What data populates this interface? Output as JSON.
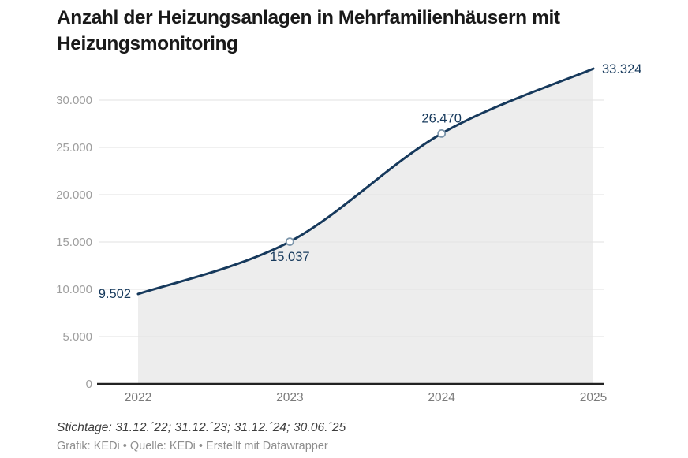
{
  "header": {
    "title_line1": "Anzahl der Heizungsanlagen in Mehrfamilienhäusern mit",
    "title_line2": "Heizungsmonitoring"
  },
  "footer": {
    "notes": "Stichtage: 31.12.´22; 31.12.´23; 31.12.´24; 30.06.´25",
    "byline": "Grafik: KEDi • Quelle: KEDi • Erstellt mit Datawrapper"
  },
  "chart_data": {
    "type": "area",
    "title": "Anzahl der Heizungsanlagen in Mehrfamilienhäusern mit Heizungsmonitoring",
    "x": [
      2022,
      2023,
      2024,
      2025
    ],
    "values": [
      9502,
      15037,
      26470,
      33324
    ],
    "value_labels": [
      "9.502",
      "15.037",
      "26.470",
      "33.324"
    ],
    "label_positions": [
      "left",
      "below",
      "above",
      "right"
    ],
    "markers": [
      false,
      true,
      true,
      false
    ],
    "x_tick_labels": [
      "2022",
      "2023",
      "2024",
      "2025"
    ],
    "y_ticks": [
      0,
      5000,
      10000,
      15000,
      20000,
      25000,
      30000
    ],
    "y_tick_labels": [
      "0",
      "5.000",
      "10.000",
      "15.000",
      "20.000",
      "25.000",
      "30.000"
    ],
    "ylim": [
      0,
      33324
    ],
    "grid": true,
    "legend": "none",
    "colors": {
      "line": "#16395c",
      "area": "#ededed",
      "grid": "#e2e2e2",
      "baseline": "#222222",
      "y_tick_text": "#9e9e9e",
      "x_tick_text": "#7b7b7b",
      "value_label_text": "#16395c",
      "marker_stroke": "#7d96ab",
      "marker_fill": "#ffffff"
    }
  }
}
